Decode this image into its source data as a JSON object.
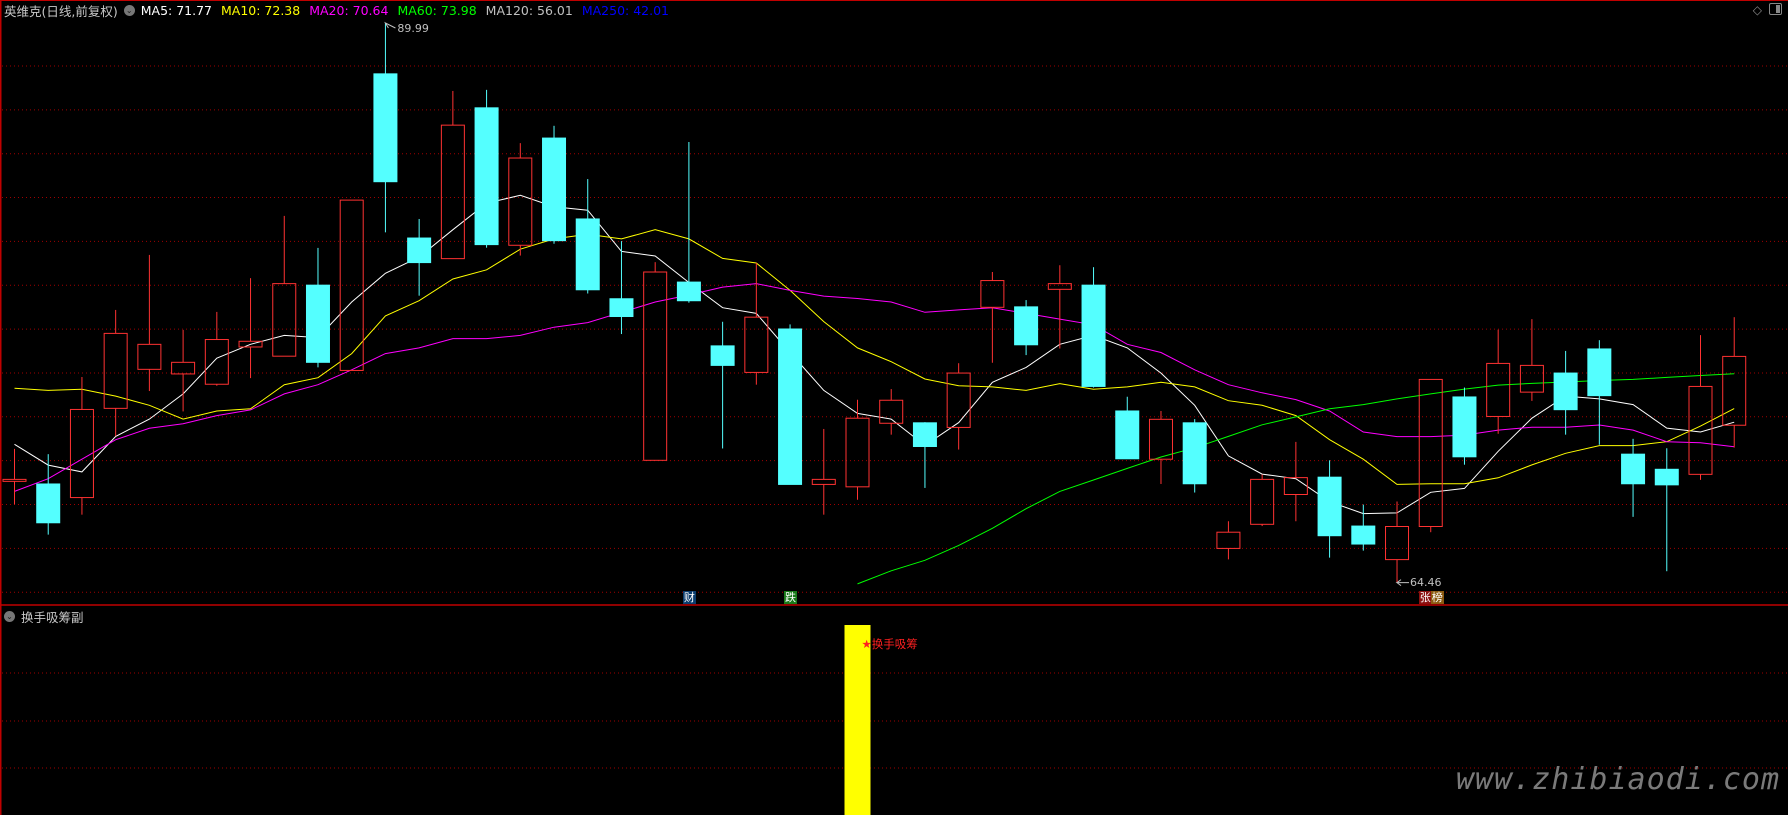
{
  "header": {
    "title": "英维克(日线,前复权)",
    "ma_labels": [
      {
        "text": "MA5: 71.77",
        "color": "#ffffff"
      },
      {
        "text": "MA10: 72.38",
        "color": "#ffff00"
      },
      {
        "text": "MA20: 70.64",
        "color": "#ff00ff"
      },
      {
        "text": "MA60: 73.98",
        "color": "#00ff00"
      },
      {
        "text": "MA120: 56.01",
        "color": "#c0c0c0"
      },
      {
        "text": "MA250: 42.01",
        "color": "#0000ff"
      }
    ]
  },
  "top_right_icons": [
    "diamond-icon",
    "panel-toggle-icon"
  ],
  "annotations": {
    "high_label": "89.99",
    "low_label": "64.46"
  },
  "markers": [
    {
      "text": "财",
      "index": 20,
      "bg": "#0b3d6e"
    },
    {
      "text": "跌",
      "index": 23,
      "bg": "#1a7a1a"
    },
    {
      "text": "张",
      "index": 42,
      "bg": "#8b1010"
    },
    {
      "text": "榜",
      "index": 42,
      "bg": "#8b5a10"
    }
  ],
  "lower_pane": {
    "title": "换手吸筹副",
    "signal_label": "★换手吸筹",
    "signal_index": 25,
    "signal_color": "#ffff00"
  },
  "watermark": "www.zhibiaodi.com",
  "colors": {
    "up": "#ff3232",
    "down": "#54ffff",
    "grid": "#a00000",
    "divider": "#c00000"
  },
  "chart_data": {
    "type": "candlestick",
    "ohlc_order": [
      "open",
      "high",
      "low",
      "close"
    ],
    "candles": [
      [
        69.08,
        70.56,
        68.03,
        69.17
      ],
      [
        68.96,
        70.32,
        66.65,
        67.19
      ],
      [
        68.34,
        73.84,
        67.56,
        72.36
      ],
      [
        72.41,
        76.9,
        71.14,
        75.83
      ],
      [
        74.19,
        79.41,
        73.2,
        75.33
      ],
      [
        73.98,
        75.99,
        72.27,
        74.51
      ],
      [
        73.51,
        76.81,
        73.44,
        75.55
      ],
      [
        75.21,
        78.35,
        73.79,
        75.47
      ],
      [
        74.79,
        81.19,
        74.79,
        78.1
      ],
      [
        78.03,
        79.73,
        74.28,
        74.51
      ],
      [
        74.14,
        81.91,
        74.14,
        81.91
      ],
      [
        87.67,
        89.99,
        80.44,
        82.75
      ],
      [
        80.18,
        81.05,
        77.55,
        79.06
      ],
      [
        79.24,
        86.89,
        79.24,
        85.33
      ],
      [
        86.12,
        86.94,
        79.74,
        79.88
      ],
      [
        79.85,
        84.51,
        79.38,
        83.83
      ],
      [
        84.74,
        85.3,
        79.92,
        80.06
      ],
      [
        81.05,
        82.87,
        77.65,
        77.82
      ],
      [
        77.41,
        80.04,
        75.8,
        76.6
      ],
      [
        70.04,
        79.08,
        70.04,
        78.63
      ],
      [
        78.17,
        84.56,
        77.23,
        77.32
      ],
      [
        75.26,
        76.36,
        70.58,
        74.37
      ],
      [
        74.05,
        79.05,
        73.49,
        76.57
      ],
      [
        76.03,
        76.24,
        68.94,
        68.94
      ],
      [
        68.94,
        71.47,
        67.56,
        69.17
      ],
      [
        68.83,
        72.8,
        68.24,
        71.96
      ],
      [
        71.73,
        73.29,
        71.21,
        72.78
      ],
      [
        71.75,
        71.78,
        68.78,
        70.67
      ],
      [
        71.54,
        74.47,
        70.53,
        74.02
      ],
      [
        77.02,
        78.63,
        74.49,
        78.24
      ],
      [
        77.04,
        77.35,
        74.84,
        75.31
      ],
      [
        77.84,
        78.94,
        75.14,
        78.1
      ],
      [
        78.03,
        78.85,
        73.36,
        73.41
      ],
      [
        72.29,
        72.94,
        70.11,
        70.11
      ],
      [
        70.09,
        72.29,
        68.96,
        71.91
      ],
      [
        71.75,
        71.92,
        68.57,
        68.97
      ],
      [
        66.02,
        67.26,
        65.52,
        66.76
      ],
      [
        67.12,
        69.39,
        67.04,
        69.17
      ],
      [
        68.48,
        70.88,
        67.26,
        69.25
      ],
      [
        69.27,
        70.04,
        65.6,
        66.6
      ],
      [
        67.04,
        68.02,
        65.92,
        66.22
      ],
      [
        65.51,
        68.16,
        64.46,
        67.02
      ],
      [
        67.02,
        73.73,
        66.76,
        73.73
      ],
      [
        72.93,
        73.36,
        69.84,
        70.2
      ],
      [
        72.04,
        76.0,
        71.25,
        74.46
      ],
      [
        73.15,
        76.48,
        72.75,
        74.37
      ],
      [
        74.02,
        75.03,
        71.21,
        72.35
      ],
      [
        75.12,
        75.52,
        70.75,
        72.99
      ],
      [
        70.32,
        71.02,
        67.46,
        68.97
      ],
      [
        69.63,
        70.59,
        64.98,
        68.92
      ],
      [
        69.4,
        75.75,
        69.15,
        73.41
      ],
      [
        71.64,
        76.57,
        70.62,
        74.78
      ]
    ],
    "series": [
      {
        "name": "MA5",
        "color": "#ffffff",
        "values": [
          70.77,
          69.82,
          69.51,
          71.13,
          71.92,
          73.07,
          74.7,
          75.33,
          75.74,
          75.64,
          77.26,
          78.57,
          79.31,
          80.56,
          81.77,
          82.13,
          81.61,
          81.45,
          79.57,
          79.36,
          78.15,
          77.0,
          76.74,
          74.96,
          73.23,
          72.18,
          71.92,
          70.72,
          71.76,
          73.6,
          74.28,
          75.33,
          75.74,
          75.17,
          74.02,
          72.55,
          70.24,
          69.41,
          69.2,
          68.15,
          67.61,
          67.64,
          68.58,
          68.76,
          70.45,
          71.96,
          72.97,
          72.84,
          72.58,
          71.51,
          71.33,
          71.78
        ]
      },
      {
        "name": "MA10",
        "color": "#ffff00",
        "values": [
          73.33,
          73.23,
          73.28,
          72.97,
          72.55,
          71.92,
          72.29,
          72.39,
          73.49,
          73.81,
          74.91,
          76.63,
          77.32,
          78.31,
          78.73,
          79.67,
          80.14,
          80.35,
          80.14,
          80.56,
          80.14,
          79.25,
          79.04,
          77.79,
          76.37,
          75.17,
          74.54,
          73.75,
          73.44,
          73.39,
          73.23,
          73.54,
          73.28,
          73.39,
          73.6,
          73.39,
          72.76,
          72.55,
          72.08,
          70.98,
          70.09,
          68.94,
          68.97,
          68.97,
          69.24,
          69.83,
          70.36,
          70.71,
          70.71,
          70.89,
          71.6,
          72.4
        ]
      },
      {
        "name": "MA20",
        "color": "#ff00ff",
        "values": [
          68.62,
          69.2,
          70.09,
          70.98,
          71.5,
          71.71,
          72.08,
          72.34,
          73.07,
          73.49,
          74.17,
          74.91,
          75.17,
          75.59,
          75.59,
          75.74,
          76.11,
          76.32,
          76.79,
          77.26,
          77.58,
          77.94,
          78.1,
          77.79,
          77.53,
          77.42,
          77.26,
          76.79,
          76.9,
          77.0,
          76.74,
          76.48,
          76.22,
          75.33,
          74.96,
          74.17,
          73.49,
          73.12,
          72.81,
          72.29,
          71.33,
          71.12,
          71.12,
          71.19,
          71.42,
          71.55,
          71.55,
          71.65,
          71.42,
          70.89,
          70.84,
          70.66
        ]
      },
      {
        "name": "MA60",
        "color": "#00ff00",
        "values": [
          null,
          null,
          null,
          null,
          null,
          null,
          null,
          null,
          null,
          null,
          null,
          null,
          null,
          null,
          null,
          null,
          null,
          null,
          null,
          null,
          null,
          null,
          null,
          null,
          null,
          64.4,
          65.0,
          65.48,
          66.16,
          66.94,
          67.83,
          68.62,
          69.14,
          69.67,
          70.19,
          70.61,
          71.13,
          71.66,
          72.02,
          72.39,
          72.58,
          72.84,
          73.07,
          73.29,
          73.47,
          73.55,
          73.61,
          73.68,
          73.73,
          73.82,
          73.91,
          73.99
        ]
      }
    ],
    "high": 89.99,
    "low": 64.46,
    "grid": true
  }
}
